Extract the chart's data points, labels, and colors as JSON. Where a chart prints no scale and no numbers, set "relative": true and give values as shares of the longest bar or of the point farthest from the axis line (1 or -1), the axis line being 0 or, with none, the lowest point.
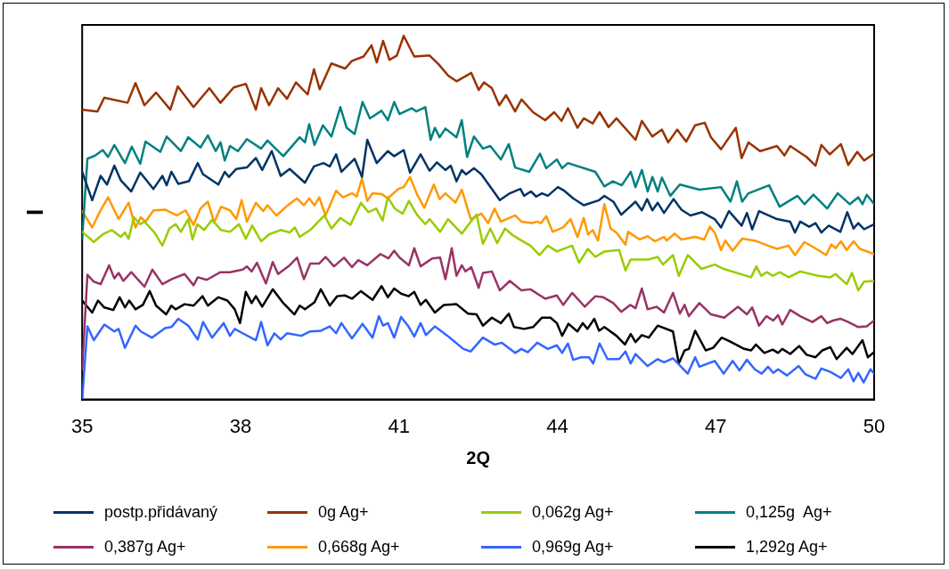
{
  "chart_data": {
    "type": "line",
    "xlabel": "2Q",
    "ylabel": "I",
    "relative": true,
    "xlim": [
      35,
      50
    ],
    "xticks": [
      35,
      38,
      41,
      44,
      47,
      50
    ],
    "legend": "bottom",
    "marker": "none",
    "series": [
      {
        "name": "postp.přidávaný",
        "color": "#003366",
        "x": [
          35.0,
          35.19,
          35.35,
          35.47,
          35.61,
          35.73,
          35.93,
          36.1,
          36.35,
          36.52,
          36.6,
          36.69,
          36.82,
          37.02,
          37.19,
          37.29,
          37.58,
          37.7,
          37.78,
          37.92,
          38.12,
          38.29,
          38.41,
          38.59,
          38.76,
          38.93,
          39.22,
          39.39,
          39.57,
          39.69,
          39.81,
          39.91,
          40.16,
          40.3,
          40.4,
          40.58,
          40.79,
          40.91,
          41.09,
          41.21,
          41.41,
          41.58,
          41.72,
          41.88,
          41.98,
          42.09,
          42.19,
          42.27,
          42.42,
          42.56,
          42.76,
          42.91,
          43.1,
          43.3,
          43.37,
          43.5,
          43.6,
          43.71,
          43.82,
          44.01,
          44.13,
          44.3,
          44.5,
          44.79,
          44.89,
          45.06,
          45.21,
          45.48,
          45.6,
          45.7,
          45.8,
          45.9,
          46.02,
          46.2,
          46.35,
          46.52,
          46.74,
          46.98,
          47.1,
          47.25,
          47.49,
          47.59,
          47.69,
          47.82,
          48.16,
          48.41,
          48.5,
          48.6,
          48.77,
          48.89,
          49.0,
          49.14,
          49.36,
          49.49,
          49.61,
          49.7,
          49.81,
          50.0
        ],
        "values": [
          0.626,
          0.548,
          0.615,
          0.591,
          0.643,
          0.603,
          0.572,
          0.624,
          0.579,
          0.615,
          0.589,
          0.626,
          0.593,
          0.6,
          0.65,
          0.619,
          0.591,
          0.626,
          0.612,
          0.634,
          0.638,
          0.664,
          0.631,
          0.683,
          0.615,
          0.634,
          0.596,
          0.641,
          0.65,
          0.641,
          0.674,
          0.626,
          0.662,
          0.612,
          0.714,
          0.65,
          0.683,
          0.669,
          0.686,
          0.624,
          0.674,
          0.629,
          0.652,
          0.631,
          0.643,
          0.6,
          0.631,
          0.619,
          0.636,
          0.619,
          0.579,
          0.548,
          0.567,
          0.579,
          0.56,
          0.572,
          0.558,
          0.567,
          0.56,
          0.584,
          0.574,
          0.553,
          0.534,
          0.548,
          0.56,
          0.544,
          0.508,
          0.544,
          0.52,
          0.551,
          0.52,
          0.541,
          0.513,
          0.551,
          0.522,
          0.506,
          0.515,
          0.496,
          0.473,
          0.518,
          0.478,
          0.513,
          0.468,
          0.518,
          0.496,
          0.489,
          0.459,
          0.489,
          0.475,
          0.485,
          0.459,
          0.478,
          0.461,
          0.515,
          0.47,
          0.485,
          0.468,
          0.482
        ]
      },
      {
        "name": "0g Ag+",
        "color": "#993300",
        "x": [
          35.0,
          35.29,
          35.42,
          35.86,
          36.01,
          36.18,
          36.4,
          36.67,
          36.81,
          37.11,
          37.41,
          37.62,
          37.87,
          38.1,
          38.29,
          38.39,
          38.54,
          38.71,
          38.88,
          39.05,
          39.27,
          39.39,
          39.5,
          39.72,
          39.98,
          40.11,
          40.33,
          40.48,
          40.58,
          40.7,
          40.82,
          40.96,
          41.09,
          41.29,
          41.58,
          41.75,
          41.93,
          42.09,
          42.37,
          42.51,
          42.61,
          42.76,
          42.9,
          43.03,
          43.2,
          43.32,
          43.54,
          43.77,
          43.94,
          44.08,
          44.2,
          44.38,
          44.5,
          44.67,
          44.8,
          44.97,
          45.12,
          45.48,
          45.6,
          45.8,
          45.98,
          46.1,
          46.27,
          46.44,
          46.61,
          46.79,
          46.91,
          47.1,
          47.38,
          47.49,
          47.62,
          47.84,
          48.16,
          48.3,
          48.41,
          48.72,
          48.89,
          49.0,
          49.16,
          49.37,
          49.51,
          49.68,
          49.81,
          50.0
        ],
        "values": [
          0.797,
          0.792,
          0.83,
          0.816,
          0.87,
          0.809,
          0.844,
          0.797,
          0.861,
          0.804,
          0.856,
          0.816,
          0.858,
          0.868,
          0.797,
          0.856,
          0.809,
          0.856,
          0.827,
          0.872,
          0.839,
          0.908,
          0.853,
          0.924,
          0.91,
          0.931,
          0.943,
          0.974,
          0.927,
          0.986,
          0.934,
          0.946,
          1,
          0.943,
          0.946,
          0.922,
          0.891,
          0.875,
          0.898,
          0.851,
          0.872,
          0.856,
          0.809,
          0.837,
          0.792,
          0.825,
          0.79,
          0.768,
          0.79,
          0.766,
          0.801,
          0.747,
          0.773,
          0.759,
          0.79,
          0.749,
          0.773,
          0.714,
          0.766,
          0.723,
          0.742,
          0.707,
          0.742,
          0.709,
          0.754,
          0.761,
          0.721,
          0.688,
          0.747,
          0.664,
          0.707,
          0.683,
          0.697,
          0.671,
          0.697,
          0.667,
          0.643,
          0.7,
          0.674,
          0.702,
          0.645,
          0.681,
          0.657,
          0.676
        ]
      },
      {
        "name": "0,062g Ag+",
        "color": "#99cc00",
        "x": [
          35.0,
          35.22,
          35.39,
          35.56,
          35.73,
          35.81,
          35.88,
          35.98,
          36.1,
          36.18,
          36.37,
          36.52,
          36.65,
          36.77,
          36.87,
          37.01,
          37.09,
          37.18,
          37.31,
          37.46,
          37.63,
          37.8,
          37.97,
          38.1,
          38.22,
          38.39,
          38.54,
          38.76,
          38.93,
          39.03,
          39.12,
          39.32,
          39.59,
          39.72,
          39.89,
          40.08,
          40.28,
          40.42,
          40.57,
          40.69,
          40.79,
          40.92,
          41.07,
          41.19,
          41.34,
          41.5,
          41.58,
          41.78,
          41.93,
          42.19,
          42.36,
          42.47,
          42.59,
          42.73,
          42.86,
          43.01,
          43.15,
          43.32,
          43.49,
          43.66,
          43.82,
          43.99,
          44.28,
          44.41,
          44.58,
          44.72,
          44.89,
          45.17,
          45.29,
          45.39,
          45.73,
          45.9,
          46.0,
          46.19,
          46.3,
          46.47,
          46.73,
          46.98,
          47.15,
          47.67,
          47.77,
          47.86,
          47.97,
          48.08,
          48.21,
          48.38,
          48.6,
          48.94,
          49.17,
          49.27,
          49.48,
          49.58,
          49.7,
          49.81,
          50.0
        ],
        "values": [
          0.461,
          0.433,
          0.454,
          0.466,
          0.447,
          0.459,
          0.442,
          0.501,
          0.482,
          0.489,
          0.459,
          0.423,
          0.47,
          0.482,
          0.461,
          0.496,
          0.44,
          0.482,
          0.466,
          0.494,
          0.466,
          0.461,
          0.482,
          0.442,
          0.478,
          0.435,
          0.454,
          0.466,
          0.459,
          0.473,
          0.447,
          0.466,
          0.506,
          0.47,
          0.499,
          0.48,
          0.541,
          0.515,
          0.525,
          0.492,
          0.556,
          0.525,
          0.511,
          0.546,
          0.508,
          0.482,
          0.496,
          0.461,
          0.496,
          0.456,
          0.489,
          0.508,
          0.428,
          0.47,
          0.43,
          0.47,
          0.452,
          0.437,
          0.423,
          0.397,
          0.423,
          0.407,
          0.423,
          0.376,
          0.414,
          0.392,
          0.407,
          0.411,
          0.355,
          0.385,
          0.385,
          0.392,
          0.371,
          0.397,
          0.34,
          0.397,
          0.359,
          0.371,
          0.359,
          0.336,
          0.366,
          0.34,
          0.35,
          0.34,
          0.35,
          0.336,
          0.352,
          0.34,
          0.336,
          0.345,
          0.317,
          0.348,
          0.3,
          0.324,
          0.326
        ]
      },
      {
        "name": "0,125g  Ag+",
        "color": "#008080",
        "x": [
          35.0,
          35.1,
          35.25,
          35.39,
          35.49,
          35.61,
          35.81,
          35.94,
          36.1,
          36.2,
          36.48,
          36.6,
          36.87,
          37.01,
          37.24,
          37.38,
          37.53,
          37.62,
          37.7,
          37.8,
          37.95,
          38.12,
          38.39,
          38.51,
          38.81,
          39.12,
          39.22,
          39.3,
          39.4,
          39.56,
          39.72,
          39.89,
          40.01,
          40.16,
          40.31,
          40.45,
          40.67,
          40.79,
          40.91,
          41.01,
          41.24,
          41.33,
          41.5,
          41.6,
          41.68,
          41.77,
          41.88,
          42.09,
          42.19,
          42.29,
          42.42,
          42.59,
          42.73,
          42.93,
          43.08,
          43.2,
          43.47,
          43.67,
          43.79,
          43.99,
          44.09,
          44.2,
          44.72,
          44.89,
          45.05,
          45.22,
          45.39,
          45.48,
          45.6,
          45.71,
          45.8,
          45.9,
          45.98,
          46.14,
          46.32,
          46.69,
          47.1,
          47.28,
          47.4,
          47.5,
          47.62,
          48.01,
          48.21,
          48.55,
          48.68,
          48.85,
          49.11,
          49.31,
          49.54,
          49.7,
          49.78,
          49.86,
          50.0
        ],
        "values": [
          0.442,
          0.662,
          0.671,
          0.686,
          0.667,
          0.7,
          0.65,
          0.695,
          0.648,
          0.709,
          0.681,
          0.723,
          0.683,
          0.721,
          0.693,
          0.726,
          0.683,
          0.707,
          0.657,
          0.697,
          0.683,
          0.716,
          0.69,
          0.712,
          0.669,
          0.721,
          0.707,
          0.757,
          0.7,
          0.754,
          0.723,
          0.804,
          0.747,
          0.73,
          0.818,
          0.773,
          0.794,
          0.768,
          0.818,
          0.785,
          0.801,
          0.792,
          0.804,
          0.714,
          0.747,
          0.721,
          0.745,
          0.721,
          0.768,
          0.667,
          0.723,
          0.69,
          0.697,
          0.66,
          0.702,
          0.638,
          0.626,
          0.676,
          0.636,
          0.66,
          0.636,
          0.65,
          0.626,
          0.586,
          0.6,
          0.589,
          0.626,
          0.584,
          0.631,
          0.572,
          0.612,
          0.572,
          0.61,
          0.56,
          0.591,
          0.577,
          0.584,
          0.544,
          0.6,
          0.544,
          0.567,
          0.589,
          0.53,
          0.56,
          0.537,
          0.563,
          0.525,
          0.567,
          0.537,
          0.556,
          0.537,
          0.563,
          0.537
        ]
      },
      {
        "name": "0,387g Ag+",
        "color": "#993366",
        "x": [
          35.0,
          35.1,
          35.22,
          35.35,
          35.51,
          35.61,
          35.69,
          35.78,
          35.93,
          36.18,
          36.33,
          36.52,
          36.7,
          36.94,
          37.11,
          37.19,
          37.36,
          37.62,
          37.8,
          38.04,
          38.12,
          38.21,
          38.31,
          38.48,
          38.61,
          38.71,
          38.93,
          39.07,
          39.2,
          39.32,
          39.49,
          39.61,
          39.77,
          39.96,
          40.11,
          40.23,
          40.4,
          40.65,
          40.8,
          40.91,
          41.01,
          41.19,
          41.29,
          41.41,
          41.63,
          41.78,
          41.88,
          42.0,
          42.09,
          42.19,
          42.26,
          42.37,
          42.51,
          42.59,
          42.76,
          42.91,
          43.1,
          43.32,
          43.49,
          43.77,
          43.99,
          44.11,
          44.28,
          44.52,
          44.72,
          44.87,
          45.06,
          45.21,
          45.38,
          45.48,
          45.6,
          45.71,
          45.88,
          46.02,
          46.19,
          46.32,
          46.41,
          46.49,
          46.69,
          46.91,
          47.16,
          47.42,
          47.59,
          47.69,
          47.82,
          47.96,
          48.09,
          48.18,
          48.26,
          48.41,
          48.6,
          48.83,
          49.0,
          49.11,
          49.22,
          49.36,
          49.51,
          49.7,
          49.86,
          50.0
        ],
        "values": [
          0.083,
          0.343,
          0.324,
          0.317,
          0.369,
          0.333,
          0.348,
          0.326,
          0.35,
          0.31,
          0.357,
          0.317,
          0.331,
          0.345,
          0.314,
          0.336,
          0.329,
          0.35,
          0.35,
          0.357,
          0.366,
          0.352,
          0.376,
          0.319,
          0.378,
          0.345,
          0.369,
          0.39,
          0.331,
          0.374,
          0.374,
          0.392,
          0.366,
          0.39,
          0.364,
          0.383,
          0.369,
          0.4,
          0.388,
          0.409,
          0.39,
          0.369,
          0.416,
          0.366,
          0.388,
          0.39,
          0.331,
          0.416,
          0.34,
          0.369,
          0.352,
          0.364,
          0.307,
          0.348,
          0.352,
          0.3,
          0.326,
          0.3,
          0.303,
          0.277,
          0.286,
          0.26,
          0.293,
          0.255,
          0.284,
          0.281,
          0.265,
          0.241,
          0.26,
          0.251,
          0.305,
          0.248,
          0.255,
          0.239,
          0.293,
          0.236,
          0.26,
          0.229,
          0.265,
          0.234,
          0.225,
          0.255,
          0.234,
          0.253,
          0.203,
          0.229,
          0.217,
          0.232,
          0.206,
          0.246,
          0.229,
          0.213,
          0.229,
          0.21,
          0.217,
          0.222,
          0.213,
          0.199,
          0.201,
          0.217
        ]
      },
      {
        "name": "0,668g Ag+",
        "color": "#ff9900",
        "x": [
          35.0,
          35.19,
          35.34,
          35.49,
          35.69,
          35.88,
          36.01,
          36.11,
          36.2,
          36.35,
          36.57,
          36.79,
          36.96,
          37.11,
          37.24,
          37.38,
          37.5,
          37.63,
          37.8,
          37.92,
          38.02,
          38.12,
          38.29,
          38.43,
          38.51,
          38.68,
          38.88,
          39.07,
          39.2,
          39.3,
          39.4,
          39.49,
          39.61,
          39.81,
          39.94,
          40.11,
          40.2,
          40.3,
          40.4,
          40.5,
          40.67,
          40.79,
          40.99,
          41.09,
          41.21,
          41.34,
          41.48,
          41.66,
          41.77,
          41.88,
          42.07,
          42.19,
          42.36,
          42.56,
          42.69,
          42.81,
          42.93,
          43.2,
          43.32,
          43.52,
          43.62,
          43.69,
          43.79,
          43.91,
          44.11,
          44.25,
          44.38,
          44.5,
          44.58,
          44.67,
          44.77,
          44.89,
          45.01,
          45.12,
          45.29,
          45.34,
          45.56,
          45.71,
          45.85,
          46.02,
          46.07,
          46.22,
          46.35,
          46.61,
          46.78,
          46.89,
          46.98,
          47.1,
          47.18,
          47.32,
          47.5,
          47.74,
          47.99,
          48.16,
          48.38,
          48.5,
          48.68,
          48.94,
          49.09,
          49.19,
          49.27,
          49.37,
          49.48,
          49.61,
          49.73,
          50.0
        ],
        "values": [
          0.518,
          0.473,
          0.518,
          0.556,
          0.496,
          0.541,
          0.473,
          0.501,
          0.489,
          0.52,
          0.522,
          0.506,
          0.52,
          0.48,
          0.525,
          0.544,
          0.487,
          0.53,
          0.52,
          0.496,
          0.548,
          0.489,
          0.541,
          0.518,
          0.534,
          0.506,
          0.532,
          0.553,
          0.534,
          0.553,
          0.534,
          0.556,
          0.506,
          0.574,
          0.556,
          0.567,
          0.558,
          0.608,
          0.546,
          0.567,
          0.565,
          0.553,
          0.579,
          0.584,
          0.612,
          0.565,
          0.527,
          0.591,
          0.551,
          0.567,
          0.541,
          0.577,
          0.496,
          0.511,
          0.485,
          0.525,
          0.489,
          0.506,
          0.489,
          0.485,
          0.489,
          0.485,
          0.504,
          0.461,
          0.473,
          0.496,
          0.447,
          0.499,
          0.454,
          0.466,
          0.437,
          0.537,
          0.47,
          0.459,
          0.426,
          0.461,
          0.44,
          0.449,
          0.435,
          0.447,
          0.437,
          0.456,
          0.44,
          0.447,
          0.44,
          0.475,
          0.459,
          0.411,
          0.437,
          0.409,
          0.442,
          0.437,
          0.423,
          0.414,
          0.423,
          0.397,
          0.433,
          0.411,
          0.397,
          0.426,
          0.416,
          0.435,
          0.411,
          0.435,
          0.414,
          0.4
        ]
      },
      {
        "name": "0,969g Ag+",
        "color": "#3366ff",
        "x": [
          35.0,
          35.1,
          35.22,
          35.42,
          35.61,
          35.69,
          35.81,
          36.01,
          36.11,
          36.32,
          36.57,
          36.69,
          36.82,
          37.01,
          37.19,
          37.29,
          37.46,
          37.68,
          37.8,
          37.89,
          38.04,
          38.29,
          38.39,
          38.51,
          38.64,
          38.76,
          38.88,
          39.15,
          39.32,
          39.52,
          39.69,
          39.81,
          39.91,
          40.11,
          40.31,
          40.5,
          40.62,
          40.7,
          40.79,
          40.91,
          41.04,
          41.18,
          41.29,
          41.41,
          41.51,
          41.68,
          41.92,
          42.22,
          42.36,
          42.59,
          42.81,
          42.95,
          43.2,
          43.32,
          43.44,
          43.62,
          43.82,
          43.99,
          44.09,
          44.2,
          44.3,
          44.45,
          44.6,
          44.68,
          44.8,
          44.95,
          45.17,
          45.29,
          45.39,
          45.48,
          45.71,
          45.9,
          46.02,
          46.19,
          46.47,
          46.61,
          46.69,
          46.98,
          47.15,
          47.32,
          47.45,
          47.59,
          47.74,
          47.87,
          47.99,
          48.09,
          48.18,
          48.35,
          48.57,
          48.7,
          48.89,
          49.0,
          49.17,
          49.37,
          49.51,
          49.61,
          49.7,
          49.8,
          49.93,
          50.0
        ],
        "values": [
          0,
          0.201,
          0.163,
          0.206,
          0.187,
          0.194,
          0.142,
          0.203,
          0.187,
          0.17,
          0.196,
          0.199,
          0.222,
          0.203,
          0.165,
          0.213,
          0.17,
          0.21,
          0.175,
          0.194,
          0.182,
          0.163,
          0.213,
          0.149,
          0.182,
          0.165,
          0.182,
          0.175,
          0.187,
          0.189,
          0.201,
          0.182,
          0.21,
          0.168,
          0.208,
          0.17,
          0.229,
          0.203,
          0.21,
          0.17,
          0.227,
          0.201,
          0.173,
          0.21,
          0.177,
          0.201,
          0.175,
          0.139,
          0.132,
          0.17,
          0.151,
          0.156,
          0.128,
          0.139,
          0.13,
          0.156,
          0.139,
          0.149,
          0.128,
          0.154,
          0.109,
          0.116,
          0.116,
          0.099,
          0.154,
          0.111,
          0.111,
          0.132,
          0.099,
          0.125,
          0.092,
          0.111,
          0.102,
          0.113,
          0.071,
          0.116,
          0.09,
          0.106,
          0.071,
          0.106,
          0.08,
          0.109,
          0.083,
          0.071,
          0.09,
          0.073,
          0.083,
          0.066,
          0.092,
          0.069,
          0.057,
          0.085,
          0.076,
          0.059,
          0.083,
          0.05,
          0.073,
          0.047,
          0.083,
          0.071
        ]
      },
      {
        "name": "1,292g Ag+",
        "color": "#000000",
        "x": [
          35.0,
          35.19,
          35.3,
          35.42,
          35.59,
          35.71,
          35.81,
          35.89,
          36.01,
          36.15,
          36.28,
          36.4,
          36.59,
          36.69,
          36.77,
          36.94,
          37.11,
          37.28,
          37.38,
          37.58,
          37.75,
          37.89,
          37.99,
          38.1,
          38.21,
          38.29,
          38.41,
          38.61,
          38.81,
          39.02,
          39.12,
          39.22,
          39.4,
          39.52,
          39.69,
          39.83,
          39.98,
          40.11,
          40.28,
          40.5,
          40.67,
          40.79,
          40.91,
          41.04,
          41.18,
          41.29,
          41.41,
          41.51,
          41.68,
          41.85,
          42.09,
          42.31,
          42.47,
          42.59,
          42.76,
          42.93,
          43.08,
          43.18,
          43.37,
          43.54,
          43.71,
          43.87,
          43.99,
          44.09,
          44.21,
          44.38,
          44.48,
          44.57,
          44.7,
          44.79,
          44.89,
          45.12,
          45.28,
          45.39,
          45.48,
          45.6,
          45.73,
          45.9,
          46.19,
          46.3,
          46.41,
          46.49,
          46.61,
          46.81,
          46.95,
          47.11,
          47.25,
          47.54,
          47.67,
          47.76,
          47.92,
          48.08,
          48.18,
          48.26,
          48.41,
          48.58,
          48.72,
          48.89,
          49.02,
          49.17,
          49.29,
          49.48,
          49.59,
          49.78,
          49.88,
          50.0
        ],
        "values": [
          0.272,
          0.239,
          0.272,
          0.253,
          0.246,
          0.281,
          0.253,
          0.272,
          0.248,
          0.26,
          0.298,
          0.258,
          0.234,
          0.258,
          0.248,
          0.262,
          0.258,
          0.284,
          0.258,
          0.281,
          0.272,
          0.248,
          0.21,
          0.296,
          0.265,
          0.284,
          0.255,
          0.303,
          0.265,
          0.234,
          0.258,
          0.248,
          0.267,
          0.303,
          0.258,
          0.284,
          0.286,
          0.277,
          0.298,
          0.274,
          0.312,
          0.281,
          0.305,
          0.291,
          0.284,
          0.296,
          0.26,
          0.274,
          0.239,
          0.26,
          0.262,
          0.236,
          0.234,
          0.203,
          0.225,
          0.21,
          0.236,
          0.199,
          0.194,
          0.199,
          0.225,
          0.225,
          0.21,
          0.175,
          0.208,
          0.187,
          0.21,
          0.194,
          0.222,
          0.189,
          0.199,
          0.175,
          0.151,
          0.18,
          0.158,
          0.177,
          0.17,
          0.203,
          0.187,
          0.099,
          0.135,
          0.139,
          0.189,
          0.135,
          0.142,
          0.17,
          0.161,
          0.139,
          0.135,
          0.151,
          0.128,
          0.137,
          0.128,
          0.139,
          0.125,
          0.147,
          0.123,
          0.116,
          0.135,
          0.144,
          0.111,
          0.142,
          0.125,
          0.163,
          0.116,
          0.13
        ]
      }
    ]
  }
}
